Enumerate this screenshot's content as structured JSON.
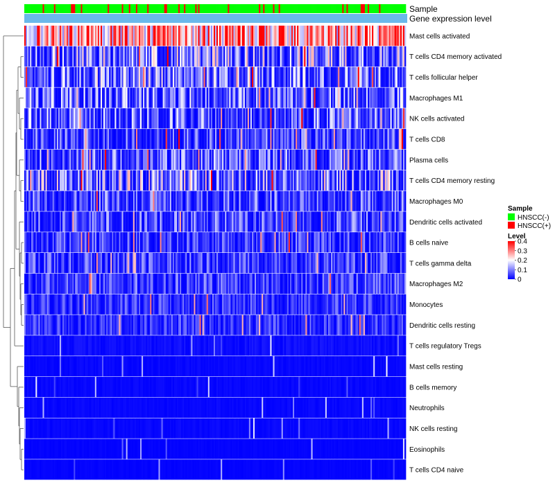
{
  "chart_data": {
    "type": "heatmap",
    "title": "",
    "annotation_tracks": [
      {
        "name": "Sample",
        "label": "Sample"
      },
      {
        "name": "Gene expression level",
        "label": "Gene expression level"
      }
    ],
    "rows": [
      "Mast cells activated",
      "T cells CD4 memory activated",
      "T cells follicular helper",
      "Macrophages M1",
      "NK cells activated",
      "T cells CD8",
      "Plasma cells",
      "T cells CD4 memory resting",
      "Macrophages M0",
      "Dendritic cells activated",
      "B cells naive",
      "T cells gamma delta",
      "Macrophages M2",
      "Monocytes",
      "Dendritic cells resting",
      "T cells regulatory  Tregs",
      "Mast cells resting",
      "B cells memory",
      "Neutrophils",
      "NK cells resting",
      "Eosinophils",
      "T cells CD4 naive"
    ],
    "row_mean_levels": [
      0.3,
      0.1,
      0.09,
      0.08,
      0.08,
      0.06,
      0.07,
      0.1,
      0.06,
      0.06,
      0.05,
      0.05,
      0.05,
      0.04,
      0.04,
      0.02,
      0.01,
      0.01,
      0.01,
      0.01,
      0.005,
      0.005
    ],
    "column_count": 270,
    "legend": {
      "sample": {
        "title": "Sample",
        "items": [
          {
            "label": "HNSCC(-)",
            "color": "#00ff00"
          },
          {
            "label": "HNSCC(+)",
            "color": "#ff0000"
          }
        ]
      },
      "level": {
        "title": "Level",
        "ticks": [
          "0.4",
          "0.3",
          "0.2",
          "0.1",
          "0"
        ],
        "range": [
          0,
          0.4
        ],
        "colors": [
          "#0000ff",
          "#ffffff",
          "#ff0000"
        ]
      }
    },
    "track_colors": {
      "gene_expression_level": "#6ab8ea",
      "dendrogram": "#555555"
    }
  }
}
